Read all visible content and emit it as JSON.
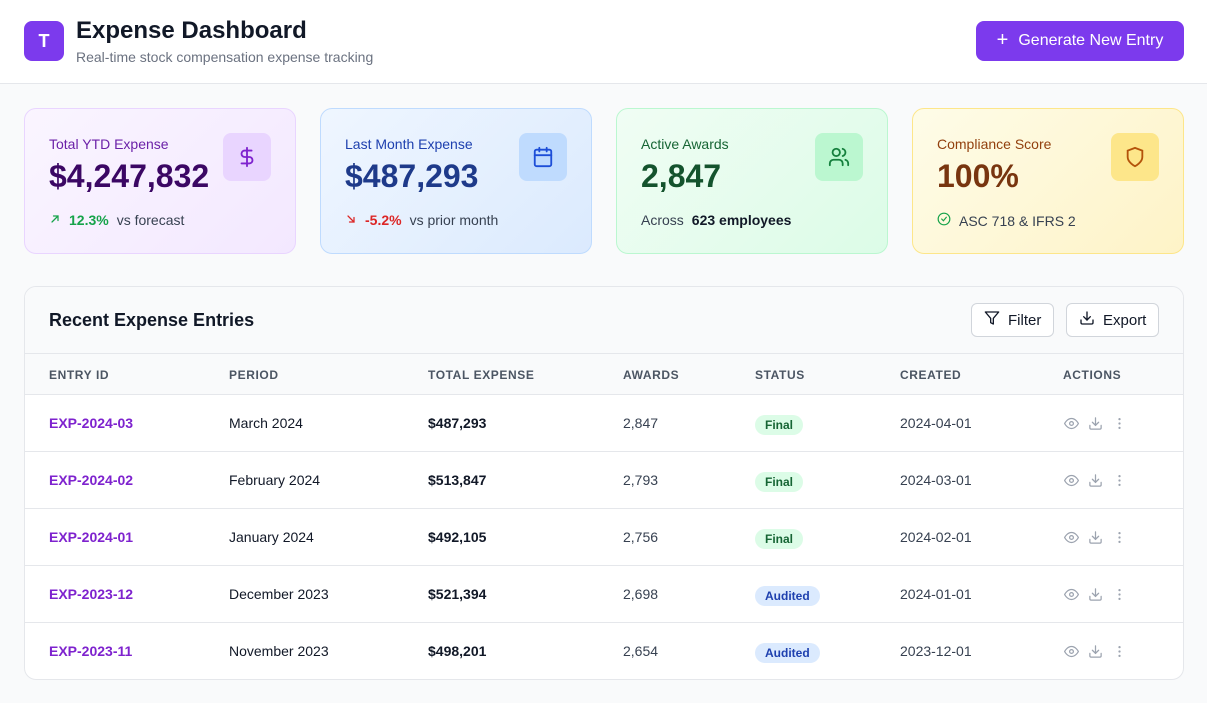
{
  "header": {
    "logo_letter": "T",
    "title": "Expense Dashboard",
    "subtitle": "Real-time stock compensation expense tracking",
    "primary_button": "Generate New Entry"
  },
  "cards": [
    {
      "label": "Total YTD Expense",
      "value": "$4,247,832",
      "delta": "12.3%",
      "delta_dir": "up",
      "foot_text": "vs forecast",
      "icon": "dollar-icon"
    },
    {
      "label": "Last Month Expense",
      "value": "$487,293",
      "delta": "-5.2%",
      "delta_dir": "down",
      "foot_text": "vs prior month",
      "icon": "calendar-icon"
    },
    {
      "label": "Active Awards",
      "value": "2,847",
      "foot_prefix": "Across",
      "foot_bold": "623 employees",
      "icon": "users-icon"
    },
    {
      "label": "Compliance Score",
      "value": "100%",
      "foot_text": "ASC 718 & IFRS 2",
      "icon": "shield-icon"
    }
  ],
  "table": {
    "title": "Recent Expense Entries",
    "filter_label": "Filter",
    "export_label": "Export",
    "columns": [
      "ENTRY ID",
      "PERIOD",
      "TOTAL EXPENSE",
      "AWARDS",
      "STATUS",
      "CREATED",
      "ACTIONS"
    ],
    "rows": [
      {
        "id": "EXP-2024-03",
        "period": "March 2024",
        "total": "$487,293",
        "awards": "2,847",
        "status": "Final",
        "created": "2024-04-01"
      },
      {
        "id": "EXP-2024-02",
        "period": "February 2024",
        "total": "$513,847",
        "awards": "2,793",
        "status": "Final",
        "created": "2024-03-01"
      },
      {
        "id": "EXP-2024-01",
        "period": "January 2024",
        "total": "$492,105",
        "awards": "2,756",
        "status": "Final",
        "created": "2024-02-01"
      },
      {
        "id": "EXP-2023-12",
        "period": "December 2023",
        "total": "$521,394",
        "awards": "2,698",
        "status": "Audited",
        "created": "2024-01-01"
      },
      {
        "id": "EXP-2023-11",
        "period": "November 2023",
        "total": "$498,201",
        "awards": "2,654",
        "status": "Audited",
        "created": "2023-12-01"
      }
    ]
  },
  "colors": {
    "accent": "#7c3aed",
    "final": "#166534",
    "audited": "#1e40af"
  }
}
